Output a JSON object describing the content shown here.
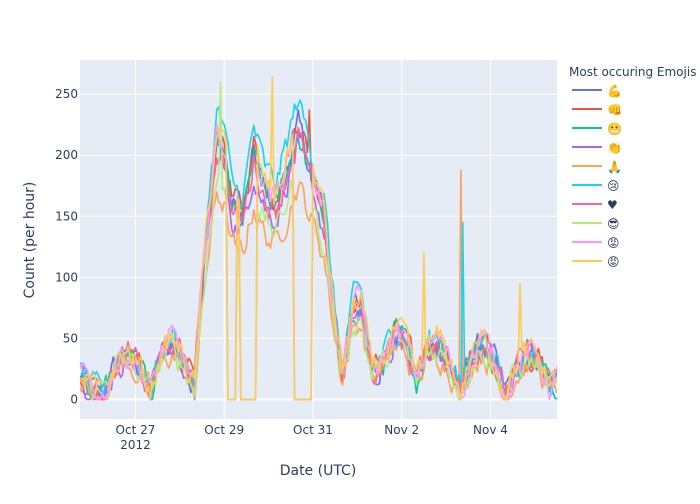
{
  "chart_data": {
    "type": "line",
    "xlabel": "Date (UTC)",
    "ylabel": "Count (per hour)",
    "ylim": [
      -16,
      278
    ],
    "xlim": [
      "2012-10-25 18:00",
      "2012-11-05 12:00"
    ],
    "yticks": [
      0,
      50,
      100,
      150,
      200,
      250
    ],
    "xticks": [
      {
        "date": "2012-10-27",
        "label": "Oct 27",
        "sublabel": "2012"
      },
      {
        "date": "2012-10-29",
        "label": "Oct 29",
        "sublabel": ""
      },
      {
        "date": "2012-10-31",
        "label": "Oct 31",
        "sublabel": ""
      },
      {
        "date": "2012-11-02",
        "label": "Nov 2",
        "sublabel": ""
      },
      {
        "date": "2012-11-04",
        "label": "Nov 4",
        "sublabel": ""
      }
    ],
    "grid": true,
    "legend": {
      "title": "Most occuring Emojis",
      "placement": "right"
    },
    "series": [
      {
        "name": "💪",
        "color": "#636efa"
      },
      {
        "name": "👊",
        "color": "#ef553b"
      },
      {
        "name": "😬",
        "color": "#00cc96"
      },
      {
        "name": "👏",
        "color": "#ab63fa"
      },
      {
        "name": "🙏",
        "color": "#ffa15a"
      },
      {
        "name": "😢",
        "color": "#19d3f3"
      },
      {
        "name": "♥",
        "color": "#ff6692"
      },
      {
        "name": "😎",
        "color": "#b6e880"
      },
      {
        "name": "😡",
        "color": "#ff97ff"
      },
      {
        "name": "😡",
        "color": "#fecb52"
      }
    ],
    "profile": [
      [
        "2012-10-25 18:00",
        20
      ],
      [
        "2012-10-26 00:00",
        10
      ],
      [
        "2012-10-26 06:00",
        2
      ],
      [
        "2012-10-26 14:00",
        30
      ],
      [
        "2012-10-26 20:00",
        35
      ],
      [
        "2012-10-27 02:00",
        25
      ],
      [
        "2012-10-27 08:00",
        5
      ],
      [
        "2012-10-27 14:00",
        35
      ],
      [
        "2012-10-27 20:00",
        45
      ],
      [
        "2012-10-28 02:00",
        30
      ],
      [
        "2012-10-28 08:00",
        10
      ],
      [
        "2012-10-28 14:00",
        120
      ],
      [
        "2012-10-28 20:00",
        200
      ],
      [
        "2012-10-29 00:00",
        190
      ],
      [
        "2012-10-29 04:00",
        150
      ],
      [
        "2012-10-29 10:00",
        140
      ],
      [
        "2012-10-29 16:00",
        190
      ],
      [
        "2012-10-29 22:00",
        160
      ],
      [
        "2012-10-30 04:00",
        150
      ],
      [
        "2012-10-30 10:00",
        180
      ],
      [
        "2012-10-30 16:00",
        210
      ],
      [
        "2012-10-30 22:00",
        180
      ],
      [
        "2012-10-31 02:00",
        160
      ],
      [
        "2012-10-31 06:00",
        140
      ],
      [
        "2012-10-31 12:00",
        60
      ],
      [
        "2012-10-31 16:00",
        20
      ],
      [
        "2012-10-31 22:00",
        70
      ],
      [
        "2012-11-01 02:00",
        75
      ],
      [
        "2012-11-01 08:00",
        20
      ],
      [
        "2012-11-01 14:00",
        30
      ],
      [
        "2012-11-01 20:00",
        50
      ],
      [
        "2012-11-02 02:00",
        45
      ],
      [
        "2012-11-02 08:00",
        15
      ],
      [
        "2012-11-02 14:00",
        40
      ],
      [
        "2012-11-02 20:00",
        45
      ],
      [
        "2012-11-03 02:00",
        30
      ],
      [
        "2012-11-03 08:00",
        5
      ],
      [
        "2012-11-03 14:00",
        35
      ],
      [
        "2012-11-03 20:00",
        45
      ],
      [
        "2012-11-04 02:00",
        30
      ],
      [
        "2012-11-04 08:00",
        5
      ],
      [
        "2012-11-04 14:00",
        25
      ],
      [
        "2012-11-04 20:00",
        35
      ],
      [
        "2012-11-05 02:00",
        30
      ],
      [
        "2012-11-05 08:00",
        10
      ],
      [
        "2012-11-05 12:00",
        15
      ]
    ],
    "gaps": [
      [
        "2012-10-29 02:00",
        "2012-10-29 06:00"
      ],
      [
        "2012-10-29 09:00",
        "2012-10-29 17:00"
      ],
      [
        "2012-10-30 14:00",
        "2012-10-30 23:00"
      ]
    ],
    "spikes": [
      {
        "series": 4,
        "date": "2012-11-03 08:00",
        "value": 188
      },
      {
        "series": 5,
        "date": "2012-11-03 09:00",
        "value": 145
      },
      {
        "series": 9,
        "date": "2012-11-04 16:00",
        "value": 95
      },
      {
        "series": 9,
        "date": "2012-11-02 12:00",
        "value": 120
      },
      {
        "series": 7,
        "date": "2012-10-28 22:00",
        "value": 260
      },
      {
        "series": 9,
        "date": "2012-10-30 02:00",
        "value": 264
      },
      {
        "series": 1,
        "date": "2012-10-30 22:00",
        "value": 237
      }
    ]
  }
}
